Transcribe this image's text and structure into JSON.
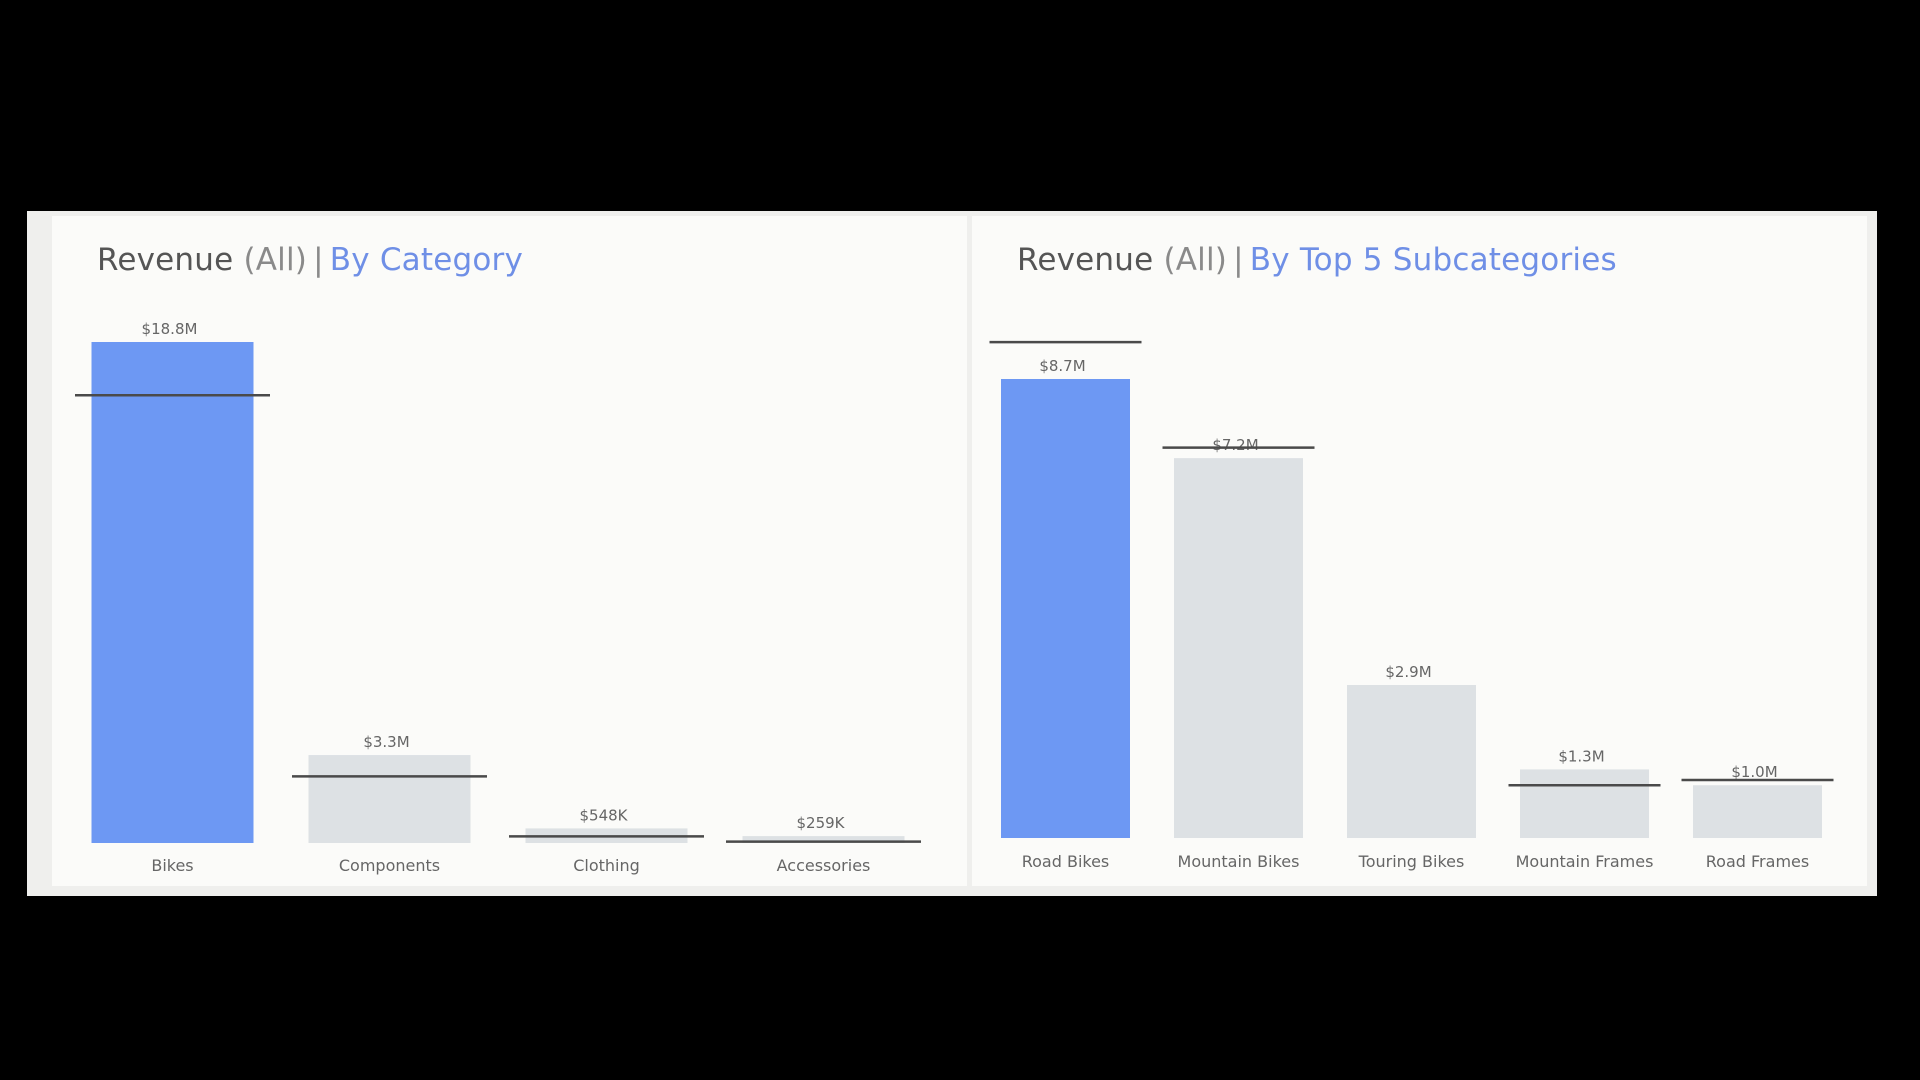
{
  "colors": {
    "highlight": "#6d98f3",
    "bar": "#dde1e4",
    "reference_line": "#4a4a4a",
    "label": "#666666",
    "title_accent": "#6f8fe6"
  },
  "chart_data": [
    {
      "type": "bar",
      "title": {
        "measure": "Revenue",
        "filter": "(All)",
        "separator": "|",
        "subtitle": "By Category"
      },
      "categories": [
        "Bikes",
        "Components",
        "Clothing",
        "Accessories"
      ],
      "values": [
        18.8,
        3.3,
        0.548,
        0.259
      ],
      "value_labels": [
        "$18.8M",
        "$3.3M",
        "$548K",
        "$259K"
      ],
      "reference_values": [
        16.8,
        2.5,
        0.25,
        0.05
      ],
      "highlighted": [
        true,
        false,
        false,
        false
      ],
      "unit": "$M",
      "ylim": [
        0,
        18.8
      ],
      "grid": false,
      "legend": "none"
    },
    {
      "type": "bar",
      "title": {
        "measure": "Revenue",
        "filter": "(All)",
        "separator": "|",
        "subtitle": "By Top 5 Subcategories"
      },
      "categories": [
        "Road Bikes",
        "Mountain Bikes",
        "Touring Bikes",
        "Mountain Frames",
        "Road Frames"
      ],
      "values": [
        8.7,
        7.2,
        2.9,
        1.3,
        1.0
      ],
      "value_labels": [
        "$8.7M",
        "$7.2M",
        "$2.9M",
        "$1.3M",
        "$1.0M"
      ],
      "reference_values": [
        9.4,
        7.4,
        0,
        1.0,
        1.1
      ],
      "highlighted": [
        true,
        false,
        false,
        false,
        false
      ],
      "unit": "$M",
      "ylim": [
        0,
        8.7
      ],
      "grid": false,
      "legend": "none"
    }
  ]
}
